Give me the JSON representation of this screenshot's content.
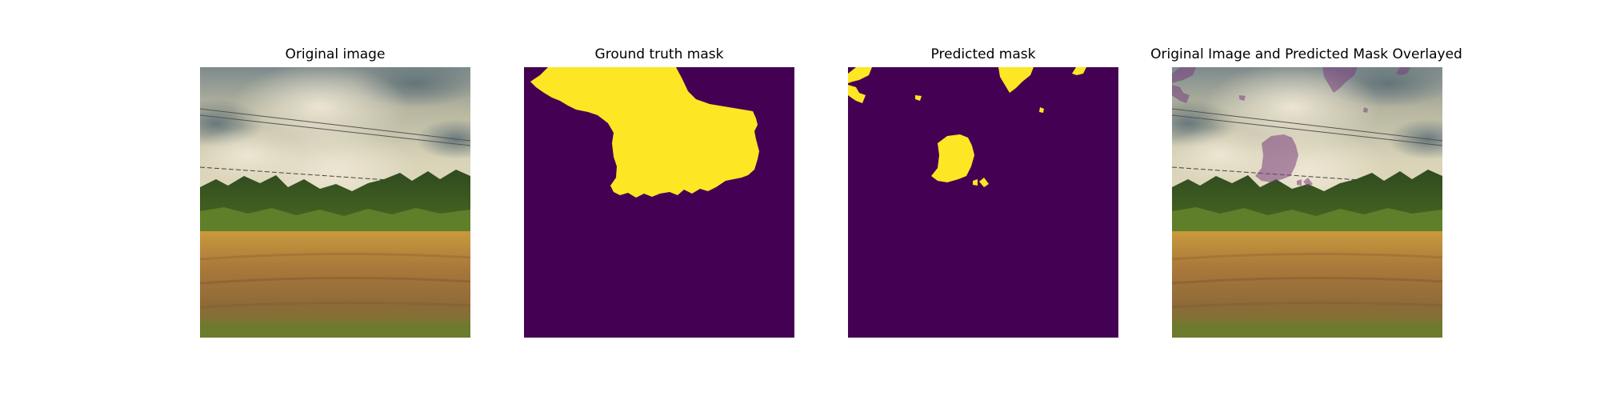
{
  "panels": [
    {
      "title": "Original image"
    },
    {
      "title": "Ground truth mask"
    },
    {
      "title": "Predicted mask"
    },
    {
      "title": "Original Image and Predicted Mask Overlayed"
    }
  ],
  "colors": {
    "mask_background": "#440154",
    "mask_foreground": "#fde725",
    "overlay_tint": "#8a5a8a"
  }
}
